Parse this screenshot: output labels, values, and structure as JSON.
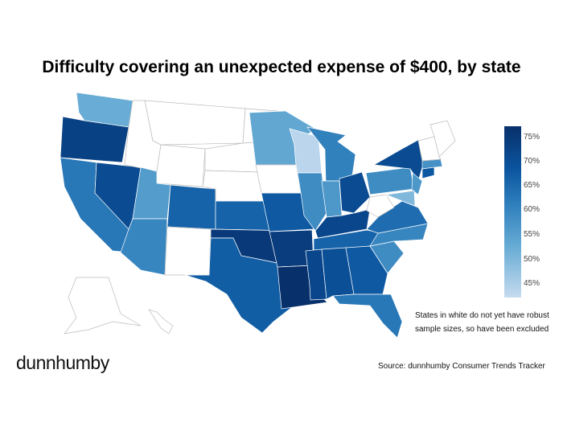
{
  "title": "Difficulty covering an unexpected expense of $400, by state",
  "legend": {
    "ticks": [
      "75%",
      "70%",
      "65%",
      "60%",
      "55%",
      "50%",
      "45%"
    ],
    "min": 44,
    "max": 77
  },
  "note_lines": [
    "States in white do not yet have robust",
    "sample sizes, so have been excluded"
  ],
  "logo": "dunnhumby",
  "source": "Source: dunnhumby Consumer Trends Tracker",
  "state_values": {
    "WA": 52,
    "OR": 73,
    "CA": 62,
    "NV": 71,
    "ID": null,
    "MT": null,
    "WY": null,
    "UT": 55,
    "AZ": 59,
    "CO": 66,
    "NM": null,
    "ND": null,
    "SD": null,
    "NE": null,
    "KS": 66,
    "OK": 75,
    "TX": 67,
    "MN": 53,
    "IA": null,
    "MO": 68,
    "AR": 74,
    "LA": 77,
    "WI": 45,
    "IL": 58,
    "MI": 60,
    "IN": 56,
    "OH": 71,
    "KY": 72,
    "TN": 66,
    "MS": 72,
    "AL": 70,
    "GA": 68,
    "FL": 62,
    "SC": 58,
    "NC": 59,
    "VA": 64,
    "WV": null,
    "PA": 58,
    "NY": 71,
    "NJ": 56,
    "MD": 50,
    "MA": 57,
    "CT": 68,
    "ME": null,
    "VTNH": null,
    "AK": null,
    "HI": null
  }
}
